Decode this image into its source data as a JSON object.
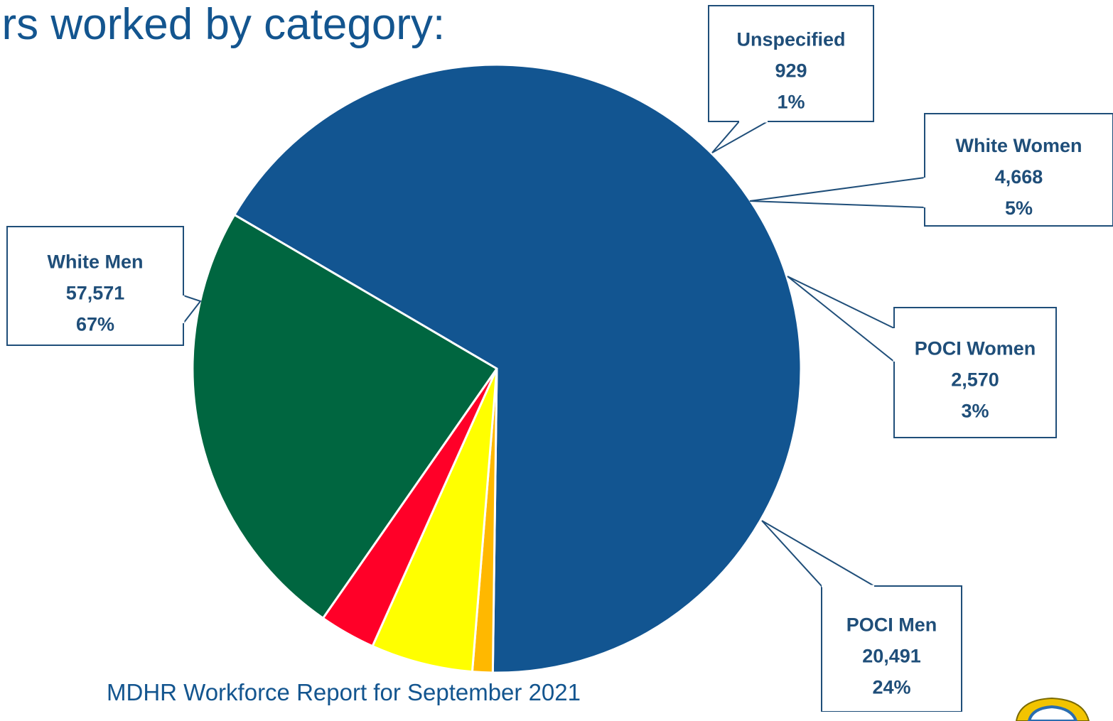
{
  "header": {
    "title": "urs worked by category:"
  },
  "footer": {
    "text": "MDHR Workforce Report for September 2021"
  },
  "chart_data": {
    "type": "pie",
    "title": "",
    "slices": [
      {
        "name": "White Men",
        "value": 57571,
        "value_label": "57,571",
        "percent_label": "67%",
        "color": "#125591"
      },
      {
        "name": "Unspecified",
        "value": 929,
        "value_label": "929",
        "percent_label": "1%",
        "color": "#ffb800"
      },
      {
        "name": "White Women",
        "value": 4668,
        "value_label": "4,668",
        "percent_label": "5%",
        "color": "#ffff00"
      },
      {
        "name": "POCI Women",
        "value": 2570,
        "value_label": "2,570",
        "percent_label": "3%",
        "color": "#ff0028"
      },
      {
        "name": "POCI Men",
        "value": 20491,
        "value_label": "20,491",
        "percent_label": "24%",
        "color": "#006640"
      }
    ],
    "label_style": "callout-boxes",
    "legend": "none"
  },
  "colors": {
    "text_accent": "#13558f",
    "label_text": "#1f4e79",
    "callout_border": "#1f4e79"
  }
}
